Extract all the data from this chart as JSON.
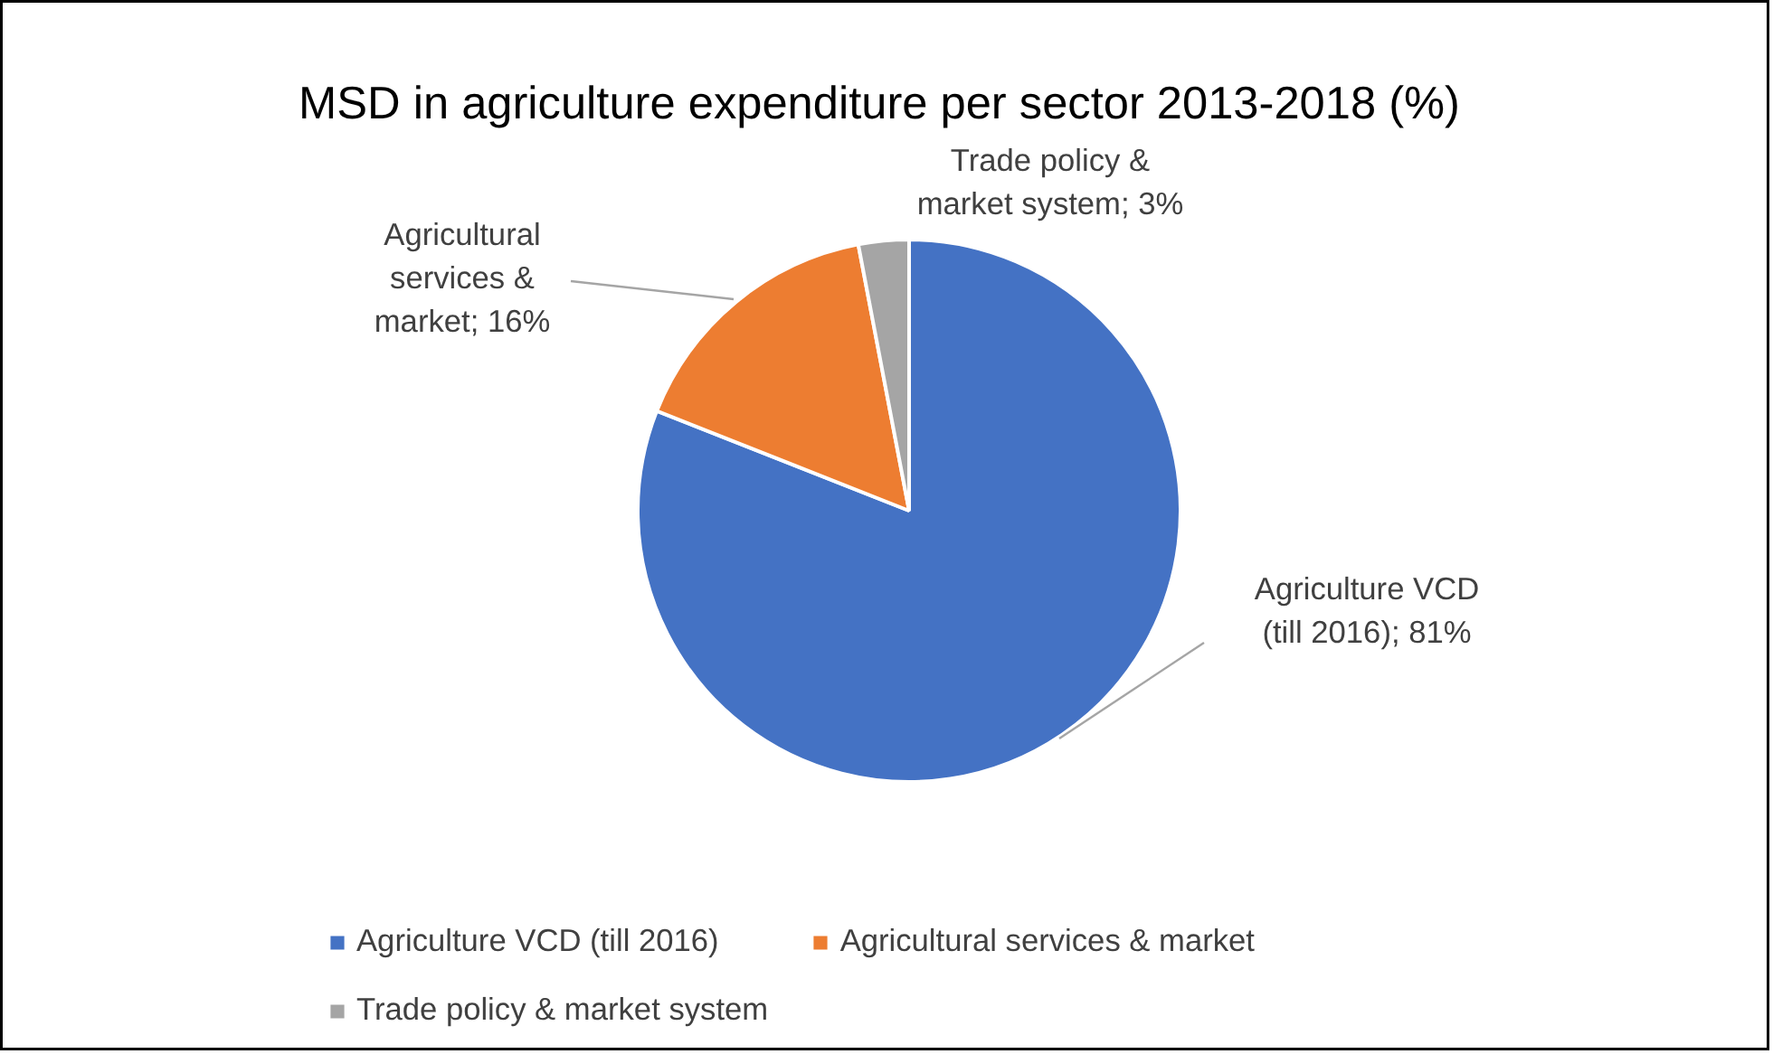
{
  "chart_data": {
    "type": "pie",
    "title": "MSD in agriculture  expenditure per sector 2013-2018 (%)",
    "categories": [
      "Agriculture VCD (till 2016)",
      "Agricultural services & market",
      "Trade policy & market system"
    ],
    "values": [
      81,
      16,
      3
    ],
    "colors": [
      "#4472c4",
      "#ed7d31",
      "#a5a5a5"
    ],
    "value_labels": [
      "Agriculture VCD (till 2016); 81%",
      "Agricultural services & market; 16%",
      "Trade policy & market system; 3%"
    ],
    "legend": "bottom"
  }
}
